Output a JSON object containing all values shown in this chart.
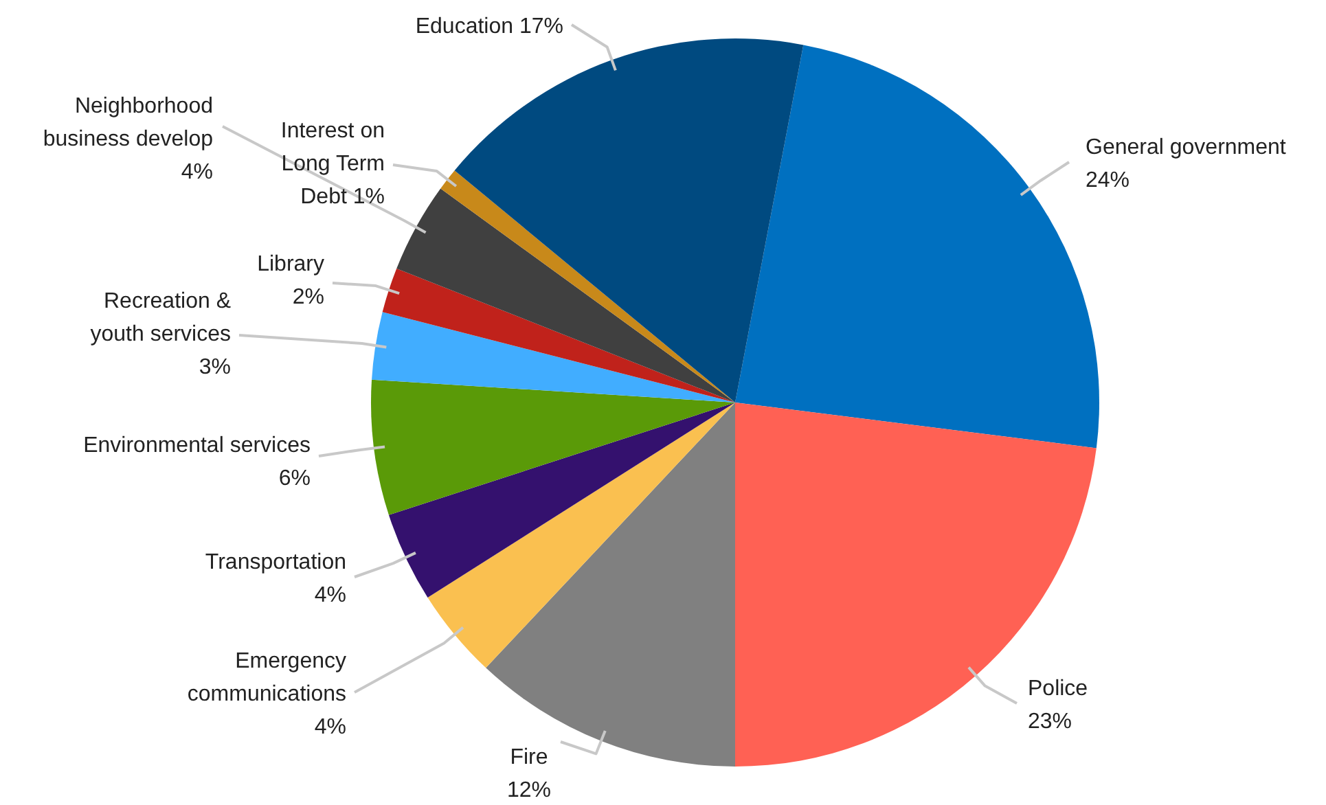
{
  "chart_data": {
    "type": "pie",
    "categories": [
      "General government",
      "Police",
      "Fire",
      "Emergency communications",
      "Transportation",
      "Environmental services",
      "Recreation & youth services",
      "Library",
      "Neighborhood business develop",
      "Interest on Long Term Debt",
      "Education"
    ],
    "values": [
      24,
      23,
      12,
      4,
      4,
      6,
      3,
      2,
      4,
      1,
      17
    ],
    "value_labels": [
      "24%",
      "23%",
      "12%",
      "4%",
      "4%",
      "6%",
      "3%",
      "2%",
      "4%",
      "1%",
      "17%"
    ],
    "colors": [
      "#0070c0",
      "#ff6154",
      "#808080",
      "#fac050",
      "#34116e",
      "#5a9a08",
      "#41adff",
      "#c0221b",
      "#404040",
      "#c8891a",
      "#004a80"
    ]
  }
}
